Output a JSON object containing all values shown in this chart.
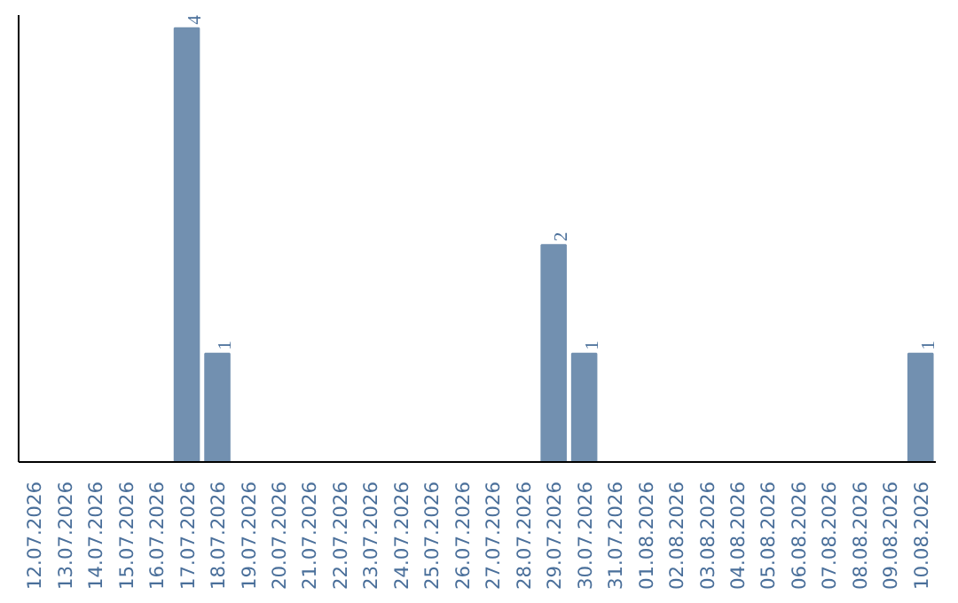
{
  "chart_data": {
    "type": "bar",
    "categories": [
      "12.07.2026",
      "13.07.2026",
      "14.07.2026",
      "15.07.2026",
      "16.07.2026",
      "17.07.2026",
      "18.07.2026",
      "19.07.2026",
      "20.07.2026",
      "21.07.2026",
      "22.07.2026",
      "23.07.2026",
      "24.07.2026",
      "25.07.2026",
      "26.07.2026",
      "27.07.2026",
      "28.07.2026",
      "29.07.2026",
      "30.07.2026",
      "31.07.2026",
      "01.08.2026",
      "02.08.2026",
      "03.08.2026",
      "04.08.2026",
      "05.08.2026",
      "06.08.2026",
      "07.08.2026",
      "08.08.2026",
      "09.08.2026",
      "10.08.2026"
    ],
    "values": [
      0,
      0,
      0,
      0,
      0,
      4,
      1,
      0,
      0,
      0,
      0,
      0,
      0,
      0,
      0,
      0,
      0,
      2,
      1,
      0,
      0,
      0,
      0,
      0,
      0,
      0,
      0,
      0,
      0,
      1
    ],
    "value_labels": [
      null,
      null,
      null,
      null,
      null,
      "4",
      "1",
      null,
      null,
      null,
      null,
      null,
      null,
      null,
      null,
      null,
      null,
      "2",
      "1",
      null,
      null,
      null,
      null,
      null,
      null,
      null,
      null,
      null,
      null,
      "1"
    ],
    "color": "#7290b0",
    "tick_labels": "x",
    "grid": false
  }
}
